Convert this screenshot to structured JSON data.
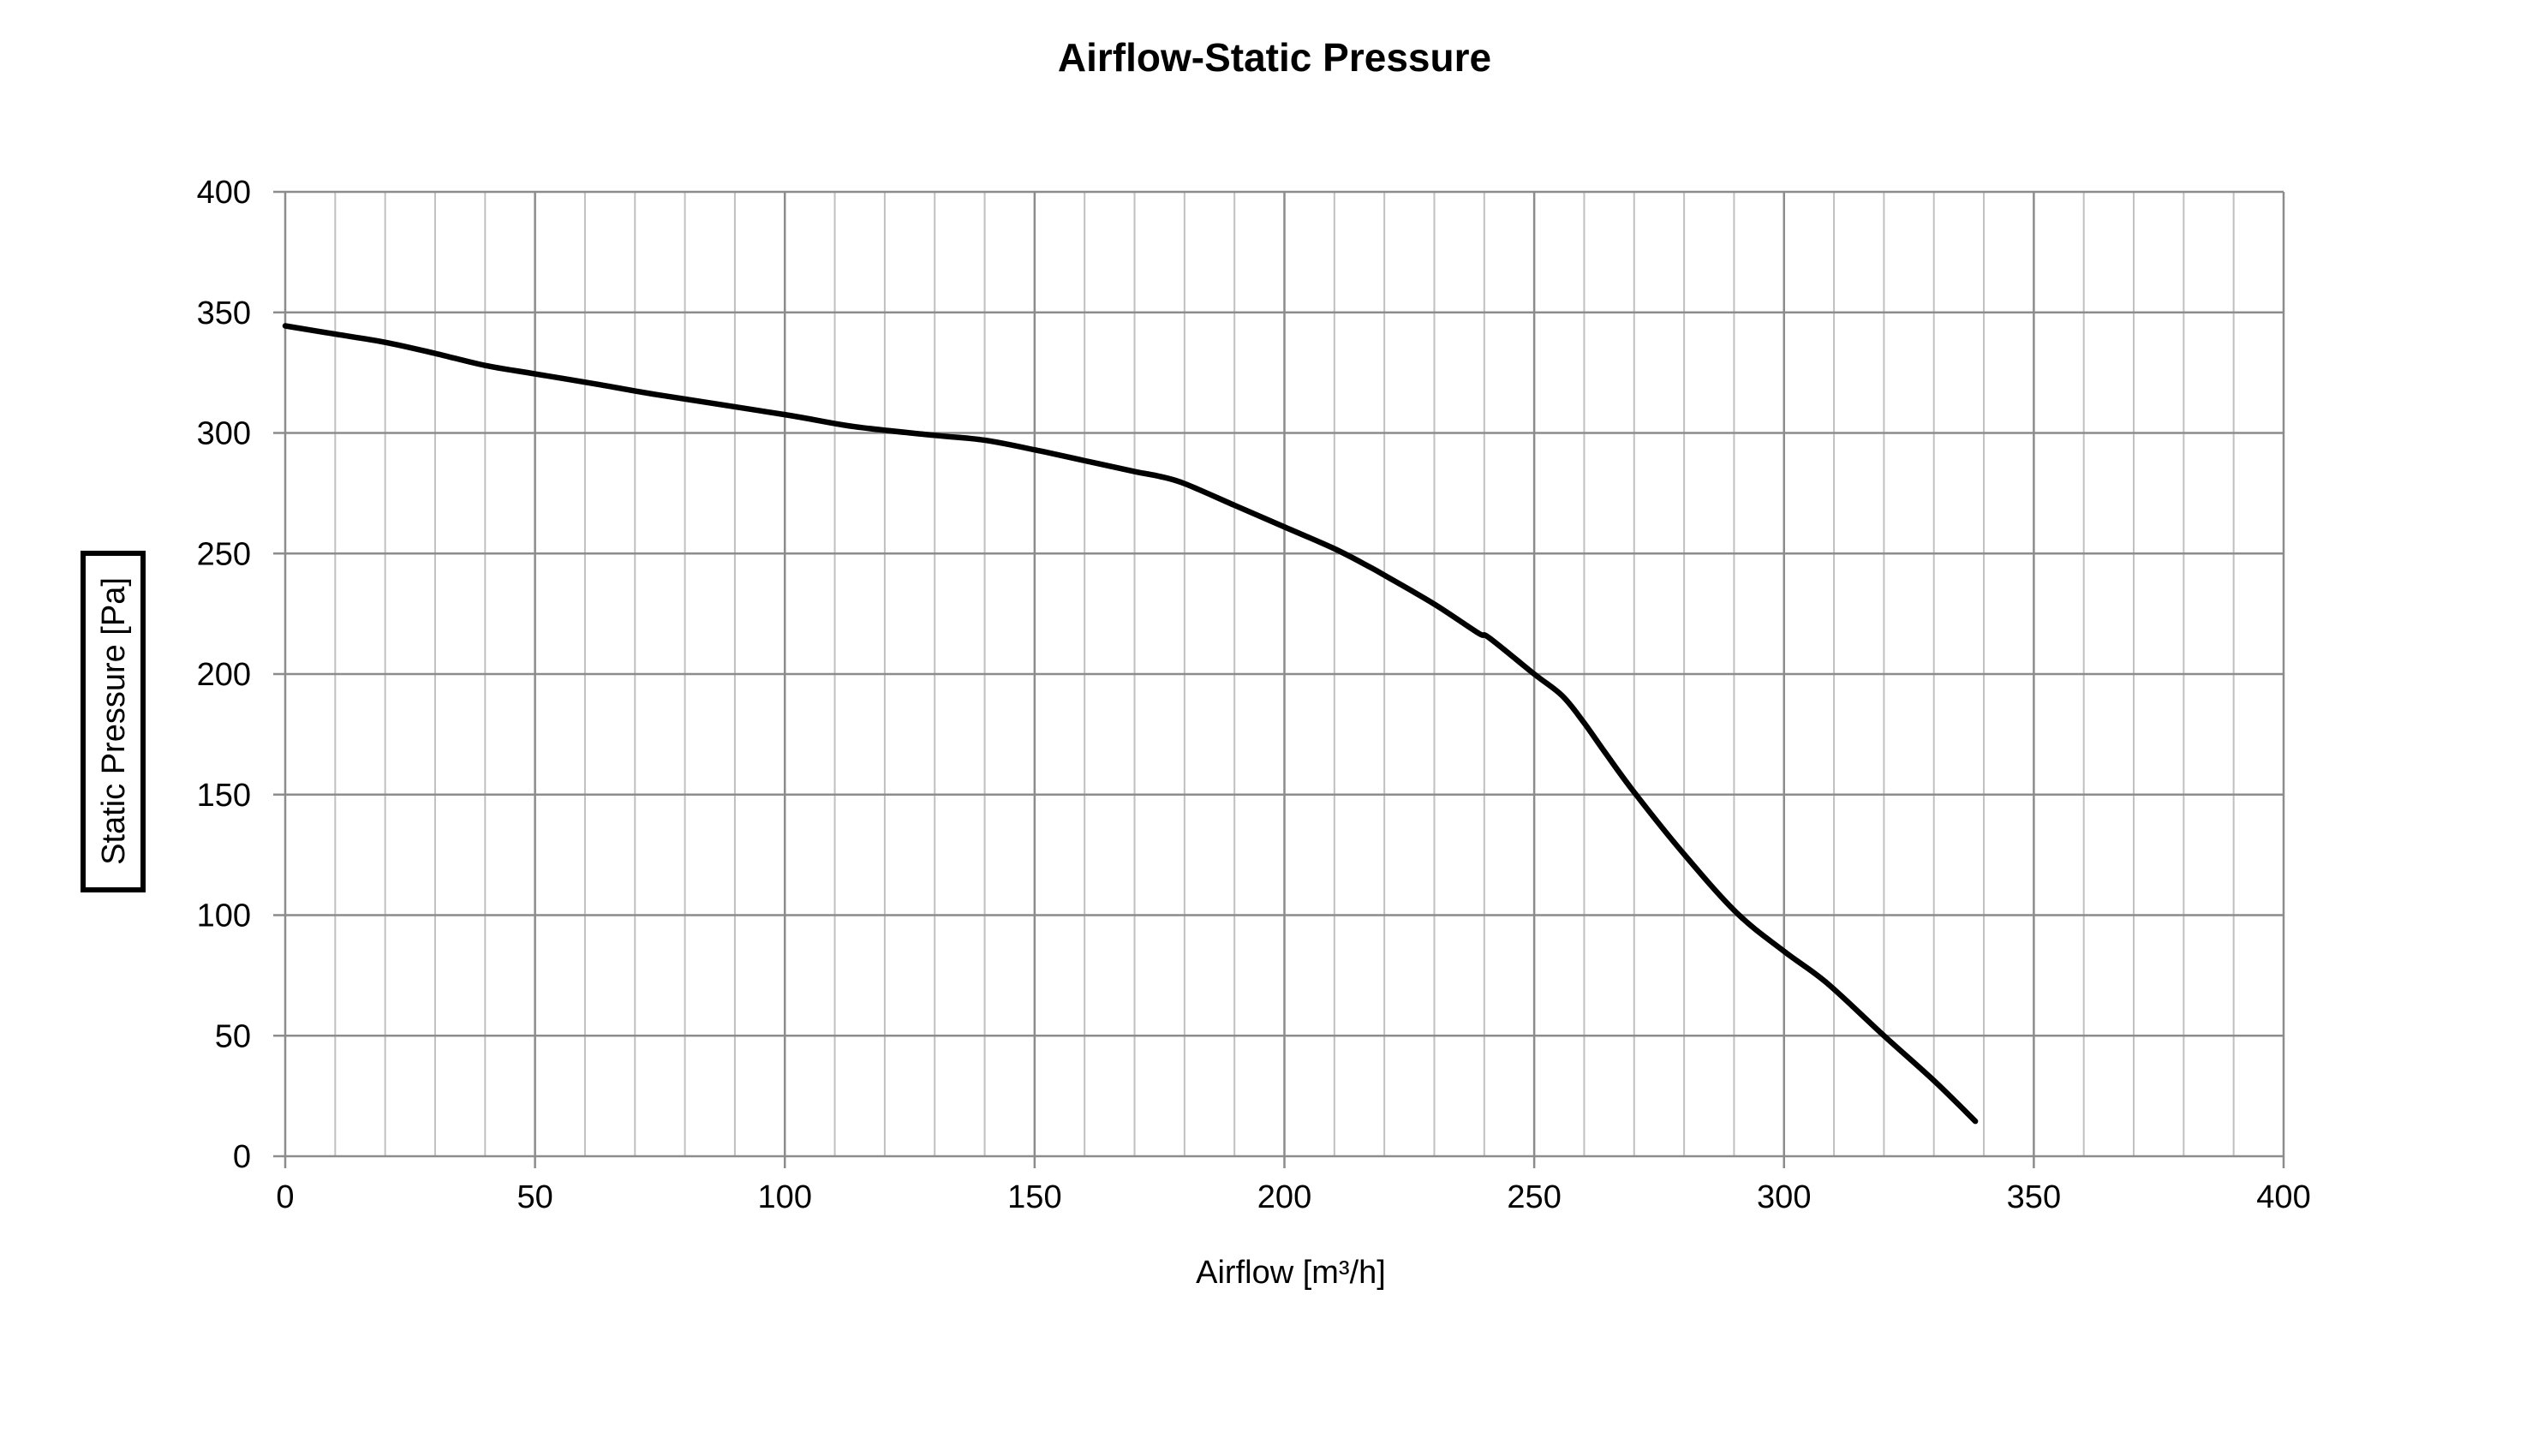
{
  "chart_data": {
    "type": "line",
    "title": "Airflow-Static Pressure",
    "xlabel": "Airflow [m³/h]",
    "ylabel": "Static Pressure [Pa]",
    "xlim": [
      0,
      400
    ],
    "ylim": [
      0,
      400
    ],
    "x_ticks": [
      0,
      50,
      100,
      150,
      200,
      250,
      300,
      350,
      400
    ],
    "y_ticks": [
      0,
      50,
      100,
      150,
      200,
      250,
      300,
      350,
      400
    ],
    "x_minor_step": 10,
    "grid": true,
    "legend": "none",
    "line_color": "#000000",
    "grid_major_color": "#8c8c8c",
    "grid_minor_color": "#c0c0c0",
    "series": [
      {
        "name": "Static Pressure",
        "x": [
          0,
          10,
          20,
          30,
          40,
          50,
          63,
          74,
          100,
          114,
          130,
          140,
          150,
          160,
          170,
          175,
          180,
          190,
          200,
          210,
          217,
          220,
          230,
          238.8,
          241,
          250,
          255.6,
          259.9,
          264,
          270,
          279.7,
          290.5,
          300,
          308.5,
          320,
          330.2,
          338.3
        ],
        "y": [
          344.4,
          341,
          337.6,
          333,
          328,
          324.5,
          320,
          316,
          307.6,
          302.6,
          299,
          297,
          293,
          288.5,
          284,
          282,
          279,
          270,
          261,
          252,
          244.5,
          241,
          229,
          217,
          215,
          200,
          191,
          180,
          168,
          151,
          126,
          101,
          85,
          72,
          50,
          31,
          14.5
        ]
      }
    ]
  }
}
